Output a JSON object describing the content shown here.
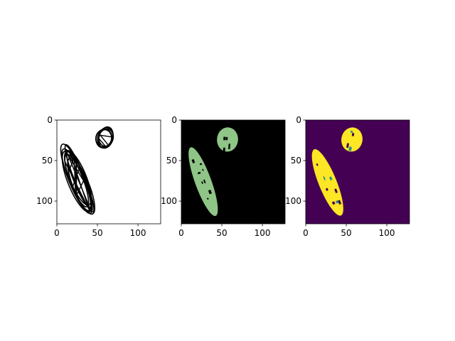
{
  "figure": {
    "background": "#ffffff",
    "panel_count": 3
  },
  "chart_data": [
    {
      "type": "heatmap",
      "title": "",
      "xlabel": "",
      "ylabel": "",
      "xlim": [
        0,
        128
      ],
      "ylim": [
        128,
        0
      ],
      "xticks": [
        0,
        50,
        100
      ],
      "yticks": [
        0,
        50,
        100
      ],
      "colors": {
        "background": "#ffffff",
        "strokes": "#000000"
      },
      "content": "black pen strokes of a small loop near x 50-70, y 10-40 and an elongated scribbled ellipse near x 10-55, y 35-120",
      "regions": [
        {
          "shape": "ellipse",
          "cx": 60,
          "cy": 23,
          "rx": 11,
          "ry": 13,
          "rotate": 15
        },
        {
          "shape": "ellipse",
          "cx": 27,
          "cy": 76,
          "rx": 11,
          "ry": 44,
          "rotate": -22
        }
      ]
    },
    {
      "type": "heatmap",
      "title": "",
      "xlabel": "",
      "ylabel": "",
      "xlim": [
        0,
        128
      ],
      "ylim": [
        128,
        0
      ],
      "xticks": [
        0,
        50,
        100
      ],
      "yticks": [
        0,
        50,
        100
      ],
      "colors": {
        "background": "#000000",
        "mask": "#8fc587"
      },
      "content": "filled segmentation mask of the two regions",
      "regions": [
        {
          "shape": "ellipse",
          "cx": 57,
          "cy": 24,
          "rx": 13,
          "ry": 15,
          "rotate": 5
        },
        {
          "shape": "ellipse",
          "cx": 27,
          "cy": 76,
          "rx": 10,
          "ry": 45,
          "rotate": -20
        }
      ]
    },
    {
      "type": "heatmap",
      "title": "",
      "xlabel": "",
      "ylabel": "",
      "xlim": [
        0,
        128
      ],
      "ylim": [
        128,
        0
      ],
      "xticks": [
        0,
        50,
        100
      ],
      "yticks": [
        0,
        50,
        100
      ],
      "colormap": "viridis",
      "colors": {
        "background": "#440154",
        "foreground": "#fde725",
        "mid": "#21918c"
      },
      "content": "viridis overlay of the stroke regions, foreground yellow on purple",
      "regions": [
        {
          "shape": "ellipse",
          "cx": 57,
          "cy": 24,
          "rx": 13,
          "ry": 15,
          "rotate": 10
        },
        {
          "shape": "ellipse",
          "cx": 27,
          "cy": 77,
          "rx": 11,
          "ry": 44,
          "rotate": -22
        }
      ]
    }
  ]
}
